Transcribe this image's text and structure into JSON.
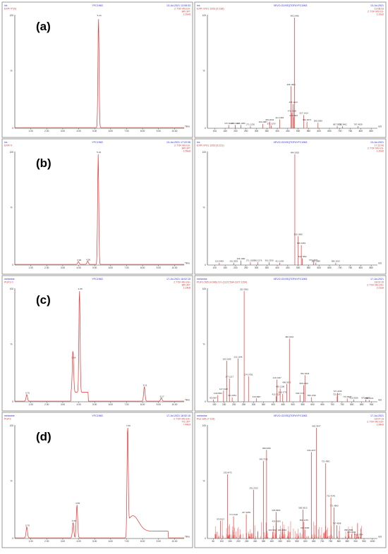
{
  "panels": [
    {
      "label": "(a)",
      "chrom": {
        "tl": "ixs",
        "tl2": "EXP/ 0*(0)",
        "tc": "YFC1963",
        "tr": "13-Jul-2021 13:08:33",
        "tr2": "2: TOF MS ES-",
        "tr3": "BPI 3FT",
        "tr4": "1.20e8",
        "xlabel": "Time",
        "ticks": [
          "1.00",
          "2.00",
          "3.00",
          "4.00",
          "5.00",
          "6.00",
          "7.00",
          "8.00",
          "9.00",
          "10.00"
        ],
        "peaks": [
          {
            "x": 5.24,
            "h": 100,
            "label": "5.24"
          }
        ]
      },
      "ms": {
        "tl": "ixs",
        "tl2": "EXP/ 9701 1253 (5.238)",
        "tc": "XEVO-G2XSQTOF#YFC1963",
        "tr": "13-Jul-2021",
        "tr2": "13:08:33",
        "tr3": "2: TOF MS ES-",
        "tr4": "1.20e6",
        "ticks": [
          "100",
          "150",
          "200",
          "250",
          "300",
          "350",
          "400",
          "450",
          "500",
          "550",
          "600",
          "650",
          "700",
          "750",
          "800",
          "850"
        ],
        "peaks": [
          {
            "x": 167.0,
            "h": 3,
            "label": "167.0626"
          },
          {
            "x": 198.1,
            "h": 3,
            "label": "198.1112"
          },
          {
            "x": 226.1,
            "h": 3,
            "label": "226.1050"
          },
          {
            "x": 271.1,
            "h": 2,
            "label": "271.1230"
          },
          {
            "x": 331.1,
            "h": 4,
            "label": "331.0987"
          },
          {
            "x": 363.2,
            "h": 6,
            "label": "363.2644"
          },
          {
            "x": 371.1,
            "h": 2.5,
            "label": "371.1070"
          },
          {
            "x": 411.1,
            "h": 8,
            "label": "411.1483"
          },
          {
            "x": 466.2,
            "h": 38,
            "label": "466.1964"
          },
          {
            "x": 476.2,
            "h": 22,
            "label": "476.1624"
          },
          {
            "x": 483.2,
            "h": 100,
            "label": "483.2496"
          },
          {
            "x": 470.2,
            "h": 14,
            "label": "470.2098"
          },
          {
            "x": 478.1,
            "h": 10,
            "label": "478.0967"
          },
          {
            "x": 527.2,
            "h": 12,
            "label": "527.1414"
          },
          {
            "x": 542.2,
            "h": 6,
            "label": "542.2674"
          },
          {
            "x": 595.2,
            "h": 5,
            "label": "595.2959"
          },
          {
            "x": 687.3,
            "h": 2,
            "label": "687.3638"
          },
          {
            "x": 713.4,
            "h": 2,
            "label": "713.3462"
          },
          {
            "x": 787.4,
            "h": 2,
            "label": "787.4639"
          }
        ]
      }
    },
    {
      "label": "(b)",
      "chrom": {
        "tl": "ixs",
        "tl2": "EXP/ 0",
        "tc": "YFC1963",
        "tr": "13-Jul-2021 17:22:06",
        "tr2": "2: TOF MS ES-",
        "tr3": "BPI 3FT",
        "tr4": "1.59e8",
        "xlabel": "Time",
        "ticks": [
          "1.00",
          "2.00",
          "3.00",
          "4.00",
          "5.00",
          "6.00",
          "7.00",
          "8.00",
          "9.00",
          "10.00"
        ],
        "peaks": [
          {
            "x": 3.98,
            "h": 2.5,
            "label": "3.98"
          },
          {
            "x": 4.56,
            "h": 3,
            "label": "4.56"
          },
          {
            "x": 5.22,
            "h": 100,
            "label": "5.22"
          }
        ]
      },
      "ms": {
        "tl": "ixs",
        "tl2": "EXP/ 9701 1253 (5.221)",
        "tc": "XEVO-G2XSQTOF#YFC1963",
        "tr": "13-Jul-2021",
        "tr2": "17:22:06",
        "tr3": "2: TOF MS ES-",
        "tr4": "1.20e6",
        "ticks": [
          "100",
          "150",
          "200",
          "250",
          "300",
          "350",
          "400",
          "450",
          "500",
          "550",
          "600",
          "650",
          "700",
          "750",
          "800",
          "850"
        ],
        "peaks": [
          {
            "x": 122.0,
            "h": 2,
            "label": "122.0409"
          },
          {
            "x": 191.0,
            "h": 2,
            "label": "191.0291"
          },
          {
            "x": 226.1,
            "h": 4,
            "label": "226.1091"
          },
          {
            "x": 271.1,
            "h": 2.5,
            "label": "271.1567"
          },
          {
            "x": 306.1,
            "h": 2.5,
            "label": "306.1276"
          },
          {
            "x": 361.2,
            "h": 2.5,
            "label": "361.2530"
          },
          {
            "x": 411.1,
            "h": 2,
            "label": "411.1436"
          },
          {
            "x": 484.2,
            "h": 100,
            "label": "484.1820"
          },
          {
            "x": 500.2,
            "h": 26,
            "label": "500.1966"
          },
          {
            "x": 515.2,
            "h": 18,
            "label": "515.1663"
          },
          {
            "x": 520.2,
            "h": 6,
            "label": "519.7952"
          },
          {
            "x": 573.2,
            "h": 3,
            "label": "573.2007"
          },
          {
            "x": 585.2,
            "h": 2,
            "label": "585.1989"
          },
          {
            "x": 680.1,
            "h": 2,
            "label": "680.1613"
          }
        ]
      }
    },
    {
      "label": "(c)",
      "chrom": {
        "tl": "melanine",
        "tl2": "PUFS 0",
        "tc": "YFC1963",
        "tr": "17-Jul-2021 18:02:15",
        "tr2": "2: TOF MS ES+",
        "tr3": "BPI 3FT",
        "tr4": "1.14e8",
        "xlabel": "Time",
        "ticks": [
          "1.00",
          "2.00",
          "3.00",
          "4.00",
          "5.00",
          "6.00",
          "7.00",
          "8.00",
          "9.00",
          "10.00"
        ],
        "peaks": [
          {
            "x": 0.75,
            "h": 6,
            "label": "0.75"
          },
          {
            "x": 3.64,
            "h": 38,
            "label": "3.64"
          },
          {
            "x": 4.05,
            "h": 100,
            "label": "4.05"
          },
          {
            "x": 8.11,
            "h": 13,
            "label": "8.11"
          },
          {
            "x": 9.17,
            "h": 3,
            "label": "9.17"
          }
        ]
      },
      "ms": {
        "tl": "melanine",
        "tl2": "PUFS 595 (4.086) Cm (1122:594-1107:1154)",
        "tc": "XEVO-G2XSQTOF#YFC1963",
        "tr": "17-Jul-2021",
        "tr2": "18:02:15",
        "tr3": "2: TOF MS ES+",
        "tr4": "2.21e6",
        "ticks": [
          "100",
          "150",
          "200",
          "250",
          "300",
          "350",
          "400",
          "450",
          "500",
          "550",
          "600",
          "650",
          "700",
          "750",
          "800",
          "850",
          "900"
        ],
        "peaks": [
          {
            "x": 95.0,
            "h": 2,
            "label": "95.0507"
          },
          {
            "x": 147.0,
            "h": 10,
            "label": "147.0448"
          },
          {
            "x": 118.0,
            "h": 6,
            "label": "118.0559"
          },
          {
            "x": 163.1,
            "h": 37,
            "label": "163.0199"
          },
          {
            "x": 177.1,
            "h": 21,
            "label": "177.1217"
          },
          {
            "x": 191.0,
            "h": 4,
            "label": "191.0351"
          },
          {
            "x": 221.2,
            "h": 39,
            "label": "221.1946"
          },
          {
            "x": 252.0,
            "h": 100,
            "label": "252.0561"
          },
          {
            "x": 274.1,
            "h": 23,
            "label": "274.0756"
          },
          {
            "x": 315.1,
            "h": 3,
            "label": "315.0867"
          },
          {
            "x": 415.2,
            "h": 5,
            "label": "415.2225"
          },
          {
            "x": 419.1,
            "h": 20,
            "label": "419.1337"
          },
          {
            "x": 435.1,
            "h": 12,
            "label": "435.1208"
          },
          {
            "x": 448.1,
            "h": 7,
            "label": "448.1778"
          },
          {
            "x": 468.2,
            "h": 16,
            "label": "468.2063"
          },
          {
            "x": 482.2,
            "h": 57,
            "label": "482.2201"
          },
          {
            "x": 536.2,
            "h": 6,
            "label": "536.1735"
          },
          {
            "x": 561.2,
            "h": 24,
            "label": "561.1843"
          },
          {
            "x": 555.2,
            "h": 15,
            "label": "555.1669"
          },
          {
            "x": 595.2,
            "h": 4,
            "label": "595.1799"
          },
          {
            "x": 727.2,
            "h": 8,
            "label": "727.2436"
          },
          {
            "x": 725.2,
            "h": 5,
            "label": "725.2471"
          },
          {
            "x": 776.3,
            "h": 3,
            "label": "776.3825"
          },
          {
            "x": 810.3,
            "h": 2,
            "label": "810.3526"
          },
          {
            "x": 870.4,
            "h": 2,
            "label": "870.4587"
          },
          {
            "x": 888.3,
            "h": 1.5,
            "label": "888.3141"
          }
        ]
      }
    },
    {
      "label": "(d)",
      "chrom": {
        "tl": "melanine",
        "tl2": "PUFS",
        "tc": "YFC1963",
        "tr": "17-Jul-2021 18:52:15",
        "tr2": "2: TOF MS ES+",
        "tr3": "TIC 3FT",
        "tr4": "7.44e9",
        "xlabel": "Time",
        "ticks": [
          "1.00",
          "2.00",
          "3.00",
          "4.00",
          "5.00",
          "6.00",
          "7.00",
          "8.00",
          "9.00",
          "10.00"
        ],
        "peaks": [
          {
            "x": 0.75,
            "h": 10,
            "label": "0.75"
          },
          {
            "x": 3.65,
            "h": 14,
            "label": "3.65"
          },
          {
            "x": 3.89,
            "h": 30,
            "label": "3.89"
          },
          {
            "x": 7.06,
            "h": 100,
            "label": "7.06"
          }
        ]
      },
      "ms": {
        "tl": "melanine",
        "tl2": "Pud 185 (7.119)",
        "tc": "XEVO-G2XSQTOF#YFC1963",
        "tr": "17-Jul-2021",
        "tr2": "18:07:13",
        "tr3": "2: TOF MS ES+",
        "tr4": "1.64e6",
        "ticks": [
          "50",
          "100",
          "150",
          "200",
          "250",
          "300",
          "350",
          "400",
          "450",
          "500",
          "550",
          "600",
          "650",
          "700",
          "750",
          "800",
          "850",
          "900",
          "950",
          "1000"
        ],
        "peaks": [
          {
            "x": 93.0,
            "h": 16,
            "label": "93.0513"
          },
          {
            "x": 135.1,
            "h": 58,
            "label": "135.0473"
          },
          {
            "x": 171.1,
            "h": 20,
            "label": "171.1126"
          },
          {
            "x": 247.1,
            "h": 22,
            "label": "247.2059"
          },
          {
            "x": 291.2,
            "h": 44,
            "label": "291.2323"
          },
          {
            "x": 349.2,
            "h": 70,
            "label": "349.2705"
          },
          {
            "x": 368.2,
            "h": 80,
            "label": "368.6250"
          },
          {
            "x": 404.2,
            "h": 6,
            "label": "404.6002"
          },
          {
            "x": 425.2,
            "h": 24,
            "label": "425.6830"
          },
          {
            "x": 426.1,
            "h": 14,
            "label": "426.1000"
          },
          {
            "x": 461.2,
            "h": 6,
            "label": "461.3962"
          },
          {
            "x": 597.1,
            "h": 8,
            "label": "597.3085"
          },
          {
            "x": 591.3,
            "h": 15,
            "label": "591.3475"
          },
          {
            "x": 585.3,
            "h": 26,
            "label": "585.3613"
          },
          {
            "x": 636.3,
            "h": 78,
            "label": "636.4077"
          },
          {
            "x": 665.4,
            "h": 100,
            "label": "665.4347"
          },
          {
            "x": 721.4,
            "h": 68,
            "label": "721.4901"
          },
          {
            "x": 752.4,
            "h": 37,
            "label": "752.4245"
          },
          {
            "x": 771.5,
            "h": 28,
            "label": "771.4860"
          },
          {
            "x": 787.4,
            "h": 12,
            "label": "787.4598"
          },
          {
            "x": 858.3,
            "h": 6,
            "label": "858.2585"
          },
          {
            "x": 875.3,
            "h": 4,
            "label": "875.3132"
          },
          {
            "x": 918.4,
            "h": 2,
            "label": "918.2904"
          }
        ]
      }
    }
  ],
  "chart_data": [
    {
      "type": "line",
      "panel": "(a) chromatogram",
      "xlabel": "Time",
      "peaks_x": [
        5.24
      ],
      "peaks_y": [
        100
      ]
    },
    {
      "type": "bar",
      "panel": "(a) mass spectrum",
      "x": [
        167.0626,
        198.1112,
        226.105,
        271.123,
        331.0987,
        363.2644,
        371.107,
        411.1483,
        466.1964,
        470.2098,
        476.1624,
        478.0967,
        483.2496,
        527.1414,
        542.2674,
        595.2959,
        687.3638,
        713.3462,
        787.4639
      ],
      "values": [
        3,
        3,
        3,
        2,
        4,
        6,
        2.5,
        8,
        38,
        14,
        22,
        10,
        100,
        12,
        6,
        5,
        2,
        2,
        2
      ]
    },
    {
      "type": "line",
      "panel": "(b) chromatogram",
      "xlabel": "Time",
      "peaks_x": [
        3.98,
        4.56,
        5.22
      ],
      "peaks_y": [
        2.5,
        3,
        100
      ]
    },
    {
      "type": "bar",
      "panel": "(b) mass spectrum",
      "x": [
        122.0409,
        191.0291,
        226.1091,
        271.1567,
        306.1276,
        361.253,
        411.1436,
        484.182,
        500.1966,
        515.1663,
        519.7952,
        573.2007,
        585.1989,
        680.1613
      ],
      "values": [
        2,
        2,
        4,
        2.5,
        2.5,
        2.5,
        2,
        100,
        26,
        18,
        6,
        3,
        2,
        2
      ]
    },
    {
      "type": "line",
      "panel": "(c) chromatogram",
      "xlabel": "Time",
      "peaks_x": [
        0.75,
        3.64,
        4.05,
        8.11,
        9.17
      ],
      "peaks_y": [
        6,
        38,
        100,
        13,
        3
      ]
    },
    {
      "type": "bar",
      "panel": "(c) mass spectrum",
      "x": [
        95.0507,
        118.0559,
        147.0448,
        163.0199,
        177.1217,
        191.0351,
        221.1946,
        252.0561,
        274.0756,
        315.0867,
        415.2225,
        419.1337,
        435.1208,
        448.1778,
        468.2063,
        482.2201,
        536.1735,
        555.1669,
        561.1843,
        595.1799,
        725.2471,
        727.2436,
        776.3825,
        810.3526,
        870.4587,
        888.3141
      ],
      "values": [
        2,
        6,
        10,
        37,
        21,
        4,
        39,
        100,
        23,
        3,
        5,
        20,
        12,
        7,
        16,
        57,
        6,
        15,
        24,
        4,
        5,
        8,
        3,
        2,
        2,
        1.5
      ]
    },
    {
      "type": "line",
      "panel": "(d) chromatogram",
      "xlabel": "Time",
      "peaks_x": [
        0.75,
        3.65,
        3.89,
        7.06
      ],
      "peaks_y": [
        10,
        14,
        30,
        100
      ]
    },
    {
      "type": "bar",
      "panel": "(d) mass spectrum",
      "x": [
        93.0513,
        135.0473,
        171.1126,
        247.2059,
        291.2323,
        349.2705,
        368.625,
        404.6002,
        425.683,
        426.1,
        461.3962,
        585.3613,
        591.3475,
        597.3085,
        636.4077,
        665.4347,
        721.4901,
        752.4245,
        771.486,
        787.4598,
        858.2585,
        875.3132,
        918.2904
      ],
      "values": [
        16,
        58,
        20,
        22,
        44,
        70,
        80,
        6,
        24,
        14,
        6,
        26,
        15,
        8,
        78,
        100,
        68,
        37,
        28,
        12,
        6,
        4,
        2
      ]
    }
  ],
  "colors": {
    "trace": "#e8322f",
    "meta_blue": "#2c2cc8",
    "meta_red": "#e8322f",
    "axis": "#333333",
    "frame": "#7f7f7f"
  }
}
